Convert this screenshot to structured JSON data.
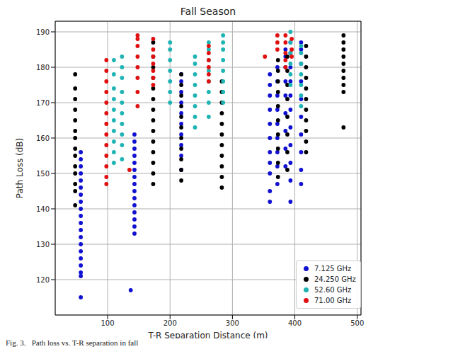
{
  "chart_data": {
    "type": "scatter",
    "title": "Fall Season",
    "x_label": "T-R Separation Distance (m)",
    "y_label": "Path Loss (dB)",
    "caption": "Fig. 3.   Path loss vs. T-R separation in fall",
    "xlim": [
      16,
      506
    ],
    "xticks": [
      100,
      200,
      300,
      400,
      500
    ],
    "ylim": [
      110,
      193
    ],
    "yticks": [
      120,
      130,
      140,
      150,
      160,
      170,
      180,
      190
    ],
    "grid": true,
    "legend": "lower right",
    "series": [
      {
        "name": "7.125 GHz",
        "color": "#1010d0",
        "points": [
          [
            57,
            115
          ],
          [
            57,
            121
          ],
          [
            57,
            122
          ],
          [
            57,
            124
          ],
          [
            57,
            126
          ],
          [
            57,
            128
          ],
          [
            57,
            130
          ],
          [
            57,
            132
          ],
          [
            57,
            134
          ],
          [
            57,
            136
          ],
          [
            57,
            138
          ],
          [
            57,
            140
          ],
          [
            57,
            142
          ],
          [
            57,
            144
          ],
          [
            57,
            146
          ],
          [
            57,
            148
          ],
          [
            57,
            150
          ],
          [
            57,
            152
          ],
          [
            57,
            154
          ],
          [
            57,
            156
          ],
          [
            137,
            117
          ],
          [
            143,
            133
          ],
          [
            143,
            135
          ],
          [
            143,
            137
          ],
          [
            143,
            139
          ],
          [
            143,
            141
          ],
          [
            143,
            143
          ],
          [
            143,
            145
          ],
          [
            143,
            147
          ],
          [
            143,
            149
          ],
          [
            143,
            151
          ],
          [
            143,
            153
          ],
          [
            143,
            155
          ],
          [
            143,
            157
          ],
          [
            143,
            159
          ],
          [
            143,
            161
          ],
          [
            218,
            151
          ],
          [
            218,
            155
          ],
          [
            218,
            158
          ],
          [
            218,
            161
          ],
          [
            218,
            164
          ],
          [
            218,
            167
          ],
          [
            218,
            170
          ],
          [
            218,
            173
          ],
          [
            218,
            176
          ],
          [
            218,
            178
          ],
          [
            360,
            142
          ],
          [
            360,
            145
          ],
          [
            360,
            150
          ],
          [
            360,
            153
          ],
          [
            360,
            156
          ],
          [
            360,
            160
          ],
          [
            360,
            164
          ],
          [
            360,
            168
          ],
          [
            360,
            172
          ],
          [
            360,
            175
          ],
          [
            360,
            178
          ],
          [
            372,
            147
          ],
          [
            372,
            152
          ],
          [
            372,
            156
          ],
          [
            372,
            160
          ],
          [
            372,
            164
          ],
          [
            372,
            168
          ],
          [
            372,
            172
          ],
          [
            372,
            176
          ],
          [
            372,
            180
          ],
          [
            385,
            152
          ],
          [
            385,
            157
          ],
          [
            385,
            162
          ],
          [
            385,
            167
          ],
          [
            385,
            172
          ],
          [
            385,
            176
          ],
          [
            385,
            180
          ],
          [
            385,
            183
          ],
          [
            385,
            185
          ],
          [
            393,
            142
          ],
          [
            393,
            148
          ],
          [
            393,
            153
          ],
          [
            393,
            158
          ],
          [
            393,
            163
          ],
          [
            393,
            168
          ],
          [
            393,
            172
          ],
          [
            393,
            176
          ],
          [
            393,
            180
          ],
          [
            393,
            184
          ],
          [
            393,
            187
          ],
          [
            410,
            147
          ],
          [
            410,
            151
          ],
          [
            410,
            156
          ],
          [
            410,
            161
          ],
          [
            410,
            166
          ],
          [
            410,
            171
          ],
          [
            410,
            176
          ],
          [
            410,
            181
          ],
          [
            410,
            185
          ],
          [
            410,
            187
          ]
        ]
      },
      {
        "name": "24.250 GHz",
        "color": "#000000",
        "points": [
          [
            48,
            141
          ],
          [
            48,
            145
          ],
          [
            48,
            147
          ],
          [
            48,
            150
          ],
          [
            48,
            152
          ],
          [
            48,
            155
          ],
          [
            48,
            157
          ],
          [
            48,
            160
          ],
          [
            48,
            162
          ],
          [
            48,
            165
          ],
          [
            48,
            168
          ],
          [
            48,
            171
          ],
          [
            48,
            174
          ],
          [
            48,
            178
          ],
          [
            173,
            147
          ],
          [
            173,
            150
          ],
          [
            173,
            153
          ],
          [
            173,
            156
          ],
          [
            173,
            159
          ],
          [
            173,
            162
          ],
          [
            173,
            165
          ],
          [
            173,
            168
          ],
          [
            173,
            171
          ],
          [
            173,
            174
          ],
          [
            173,
            177
          ],
          [
            173,
            180
          ],
          [
            173,
            183
          ],
          [
            173,
            187
          ],
          [
            218,
            148
          ],
          [
            218,
            151
          ],
          [
            218,
            154
          ],
          [
            218,
            157
          ],
          [
            218,
            160
          ],
          [
            218,
            163
          ],
          [
            218,
            166
          ],
          [
            218,
            169
          ],
          [
            218,
            172
          ],
          [
            218,
            175
          ],
          [
            218,
            178
          ],
          [
            283,
            146
          ],
          [
            283,
            149
          ],
          [
            283,
            152
          ],
          [
            283,
            155
          ],
          [
            283,
            158
          ],
          [
            283,
            161
          ],
          [
            283,
            164
          ],
          [
            283,
            167
          ],
          [
            283,
            170
          ],
          [
            283,
            173
          ],
          [
            283,
            176
          ],
          [
            373,
            149
          ],
          [
            373,
            153
          ],
          [
            373,
            157
          ],
          [
            373,
            161
          ],
          [
            373,
            165
          ],
          [
            373,
            169
          ],
          [
            373,
            173
          ],
          [
            373,
            176
          ],
          [
            373,
            179
          ],
          [
            373,
            182
          ],
          [
            388,
            151
          ],
          [
            388,
            156
          ],
          [
            388,
            161
          ],
          [
            388,
            166
          ],
          [
            388,
            171
          ],
          [
            388,
            175
          ],
          [
            388,
            179
          ],
          [
            388,
            183
          ],
          [
            418,
            156
          ],
          [
            418,
            159
          ],
          [
            418,
            162
          ],
          [
            418,
            165
          ],
          [
            418,
            168
          ],
          [
            418,
            171
          ],
          [
            418,
            174
          ],
          [
            418,
            177
          ],
          [
            418,
            180
          ],
          [
            418,
            183
          ],
          [
            418,
            186
          ],
          [
            478,
            163
          ],
          [
            478,
            173
          ],
          [
            478,
            175
          ],
          [
            478,
            177
          ],
          [
            478,
            179
          ],
          [
            478,
            181
          ],
          [
            478,
            183
          ],
          [
            478,
            185
          ],
          [
            478,
            187
          ],
          [
            478,
            189
          ]
        ]
      },
      {
        "name": "52.60 GHz",
        "color": "#1fb3b3",
        "points": [
          [
            110,
            153
          ],
          [
            110,
            156
          ],
          [
            110,
            159
          ],
          [
            110,
            162
          ],
          [
            110,
            165
          ],
          [
            110,
            168
          ],
          [
            110,
            171
          ],
          [
            110,
            174
          ],
          [
            110,
            178
          ],
          [
            110,
            182
          ],
          [
            123,
            154
          ],
          [
            123,
            158
          ],
          [
            123,
            161
          ],
          [
            123,
            164
          ],
          [
            123,
            167
          ],
          [
            123,
            170
          ],
          [
            123,
            173
          ],
          [
            123,
            177
          ],
          [
            123,
            180
          ],
          [
            123,
            183
          ],
          [
            200,
            170
          ],
          [
            200,
            173
          ],
          [
            200,
            176
          ],
          [
            200,
            179
          ],
          [
            200,
            182
          ],
          [
            200,
            185
          ],
          [
            200,
            187
          ],
          [
            240,
            163
          ],
          [
            240,
            166
          ],
          [
            240,
            169
          ],
          [
            240,
            172
          ],
          [
            240,
            175
          ],
          [
            240,
            178
          ],
          [
            240,
            181
          ],
          [
            240,
            183
          ],
          [
            262,
            166
          ],
          [
            262,
            170
          ],
          [
            262,
            173
          ],
          [
            262,
            176
          ],
          [
            262,
            179
          ],
          [
            262,
            182
          ],
          [
            262,
            185
          ],
          [
            262,
            187
          ],
          [
            285,
            170
          ],
          [
            285,
            173
          ],
          [
            285,
            176
          ],
          [
            285,
            179
          ],
          [
            285,
            182
          ],
          [
            285,
            185
          ],
          [
            285,
            187
          ],
          [
            285,
            189
          ],
          [
            393,
            175
          ],
          [
            393,
            178
          ],
          [
            393,
            181
          ],
          [
            393,
            184
          ],
          [
            393,
            187
          ],
          [
            393,
            190
          ],
          [
            410,
            169
          ],
          [
            410,
            172
          ],
          [
            410,
            175
          ],
          [
            410,
            178
          ],
          [
            410,
            181
          ],
          [
            410,
            184
          ],
          [
            410,
            186
          ]
        ]
      },
      {
        "name": "71.00 GHz",
        "color": "#e01010",
        "points": [
          [
            98,
            147
          ],
          [
            98,
            149
          ],
          [
            98,
            152
          ],
          [
            98,
            155
          ],
          [
            98,
            158
          ],
          [
            98,
            161
          ],
          [
            98,
            164
          ],
          [
            98,
            167
          ],
          [
            98,
            170
          ],
          [
            98,
            173
          ],
          [
            98,
            176
          ],
          [
            98,
            179
          ],
          [
            98,
            182
          ],
          [
            135,
            151
          ],
          [
            148,
            169
          ],
          [
            148,
            173
          ],
          [
            148,
            177
          ],
          [
            148,
            180
          ],
          [
            148,
            183
          ],
          [
            148,
            186
          ],
          [
            148,
            188
          ],
          [
            148,
            189
          ],
          [
            173,
            175
          ],
          [
            173,
            177
          ],
          [
            173,
            179
          ],
          [
            173,
            181
          ],
          [
            173,
            183
          ],
          [
            173,
            185
          ],
          [
            173,
            188
          ],
          [
            262,
            176
          ],
          [
            262,
            178
          ],
          [
            262,
            180
          ],
          [
            262,
            182
          ],
          [
            262,
            184
          ],
          [
            262,
            186
          ],
          [
            352,
            183
          ],
          [
            372,
            185
          ],
          [
            372,
            187
          ],
          [
            372,
            189
          ],
          [
            385,
            180
          ],
          [
            385,
            182
          ],
          [
            385,
            184
          ],
          [
            385,
            187
          ],
          [
            385,
            189
          ],
          [
            395,
            183
          ],
          [
            395,
            185
          ],
          [
            395,
            188
          ]
        ]
      }
    ]
  }
}
